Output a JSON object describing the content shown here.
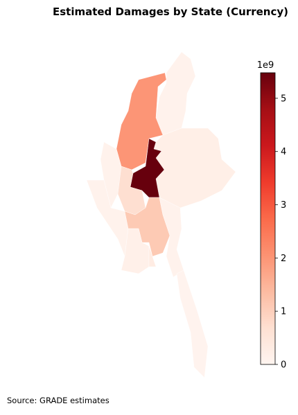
{
  "chart_data": {
    "type": "choropleth",
    "title": "Estimated Damages by State (Currency)",
    "source": "Source: GRADE estimates",
    "colormap": [
      "#fff5f0",
      "#fee0d2",
      "#fcbba1",
      "#fc9272",
      "#fb6a4a",
      "#ef3b2c",
      "#cb181d",
      "#a50f15",
      "#67000d"
    ],
    "values": [
      0.1,
      2.0,
      0.1,
      5.48,
      0.2,
      0.7,
      0.1,
      1.1,
      0.15,
      0.3,
      0.1,
      0.05
    ],
    "vlim": [
      0,
      5.48
    ],
    "ticks": [
      0,
      1,
      2,
      3,
      4,
      5
    ],
    "offset_label": "1e9"
  }
}
